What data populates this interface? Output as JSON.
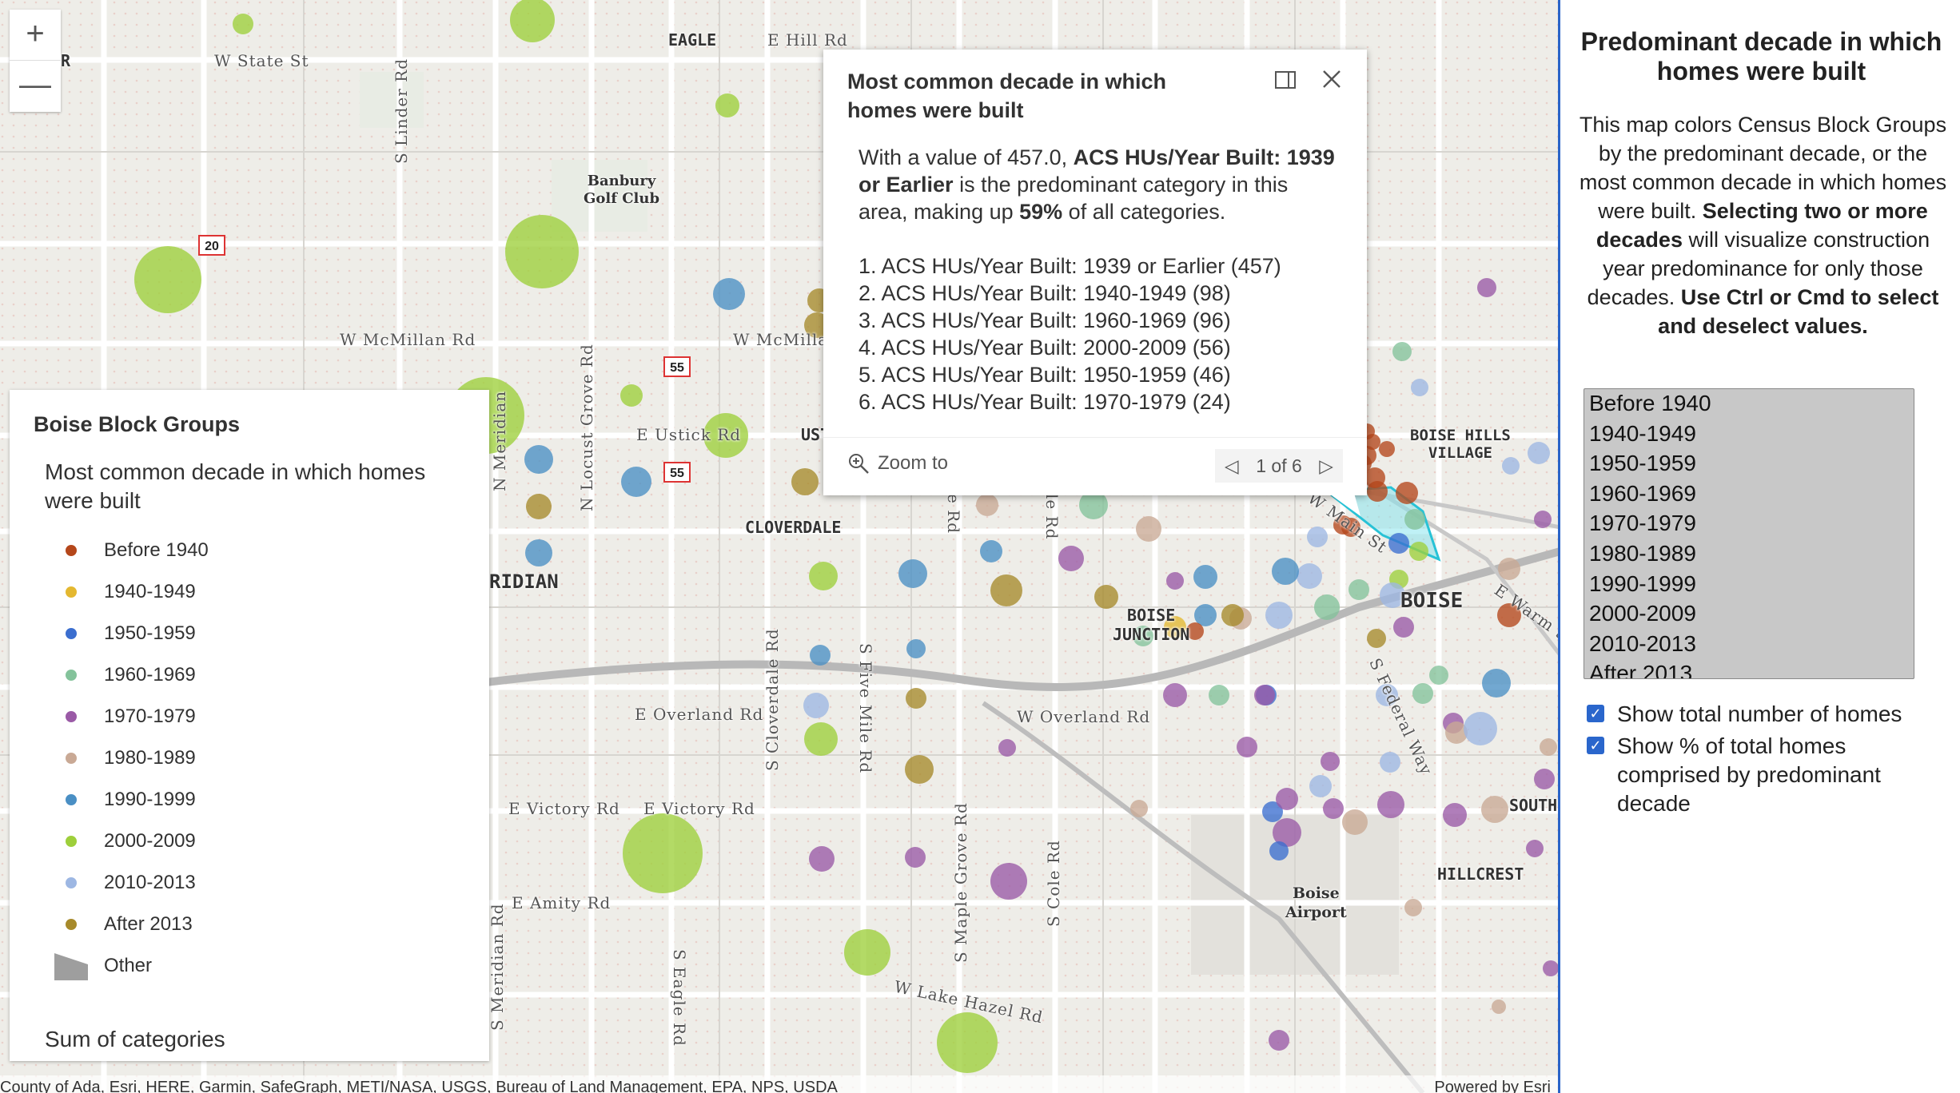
{
  "map": {
    "zoom_in": "+",
    "zoom_out": "—",
    "roads": [
      {
        "name": "W State St"
      },
      {
        "name": "S Linder Rd"
      },
      {
        "name": "W McMillan Rd"
      },
      {
        "name": "W McMillan"
      },
      {
        "name": "N Locust Grove Rd"
      },
      {
        "name": "E Ustick Rd"
      },
      {
        "name": "E Overland Rd"
      },
      {
        "name": "E Victory Rd"
      },
      {
        "name": "E Amity Rd"
      },
      {
        "name": "S Cloverdale Rd"
      },
      {
        "name": "S Five Mile Rd"
      },
      {
        "name": "W Overland Rd"
      },
      {
        "name": "S Maple Grove Rd"
      },
      {
        "name": "S Cole Rd"
      },
      {
        "name": "W Lake Hazel Rd"
      },
      {
        "name": "S Eagle Rd"
      },
      {
        "name": "S Meridian Rd"
      },
      {
        "name": "W Main St"
      },
      {
        "name": "S Federal Way"
      },
      {
        "name": "E Warm Spr"
      },
      {
        "name": "E Hill Rd"
      },
      {
        "name": "N Meridian"
      },
      {
        "name": "le Rd"
      },
      {
        "name": "e Rd"
      }
    ],
    "places": [
      {
        "name": "EAGLE"
      },
      {
        "name": "Banbury\nGolf Club"
      },
      {
        "name": "CLOVERDALE"
      },
      {
        "name": "RIDIAN"
      },
      {
        "name": "BOISE\nJUNCTION"
      },
      {
        "name": "BOISE"
      },
      {
        "name": "BOISE HILLS\nVILLAGE"
      },
      {
        "name": "SOUTH"
      },
      {
        "name": "HILLCREST"
      },
      {
        "name": "Boise\nAirport"
      },
      {
        "name": "UST"
      },
      {
        "name": "R"
      }
    ],
    "shields": [
      "20",
      "55",
      "55"
    ],
    "attribution": "County of Ada, Esri, HERE, Garmin, SafeGraph, METI/NASA, USGS, Bureau of Land Management, EPA, NPS, USDA",
    "powered_by": "Powered by Esri"
  },
  "legend": {
    "title": "Boise Block Groups",
    "subtitle": "Most common decade in which homes were built",
    "items": [
      {
        "label": "Before 1940",
        "color": "#b5471b"
      },
      {
        "label": "1940-1949",
        "color": "#e4b830"
      },
      {
        "label": "1950-1959",
        "color": "#3b6ecf"
      },
      {
        "label": "1960-1969",
        "color": "#84c39b"
      },
      {
        "label": "1970-1979",
        "color": "#9a5aa6"
      },
      {
        "label": "1980-1989",
        "color": "#c9a995"
      },
      {
        "label": "1990-1999",
        "color": "#4a8fc4"
      },
      {
        "label": "2000-2009",
        "color": "#9ecf3b"
      },
      {
        "label": "2010-2013",
        "color": "#9db7e3"
      },
      {
        "label": "After 2013",
        "color": "#a78a2b"
      }
    ],
    "other_label": "Other",
    "sum_label": "Sum of categories"
  },
  "popup": {
    "title": "Most common decade in which homes were built",
    "intro_pre": "With a value of 457.0, ",
    "intro_bold": "ACS HUs/Year Built: 1939 or Earlier",
    "intro_mid": " is the predominant category in this area, making up ",
    "intro_pct": "59%",
    "intro_post": " of all categories.",
    "list": [
      "1. ACS HUs/Year Built: 1939 or Earlier (457)",
      "2. ACS HUs/Year Built: 1940-1949 (98)",
      "3. ACS HUs/Year Built: 1960-1969 (96)",
      "4. ACS HUs/Year Built: 2000-2009 (56)",
      "5. ACS HUs/Year Built: 1950-1959 (46)",
      "6. ACS HUs/Year Built: 1970-1979 (24)"
    ],
    "zoom_to": "Zoom to",
    "pager": "1 of 6"
  },
  "sidebar": {
    "title": "Predominant decade in which homes were built",
    "desc_1": "This map colors Census Block Groups by the predominant decade, or the most common decade in which homes were built. ",
    "desc_2": "Selecting two or more decades",
    "desc_3": " will visualize construction year predominance for only those decades. ",
    "desc_4": "Use Ctrl or Cmd to select and deselect values.",
    "options": [
      "Before 1940",
      "1940-1949",
      "1950-1959",
      "1960-1969",
      "1970-1979",
      "1980-1989",
      "1990-1999",
      "2000-2009",
      "2010-2013",
      "After 2013"
    ],
    "check_1": "Show total number of homes",
    "check_2": "Show % of total homes comprised by predominant decade"
  }
}
